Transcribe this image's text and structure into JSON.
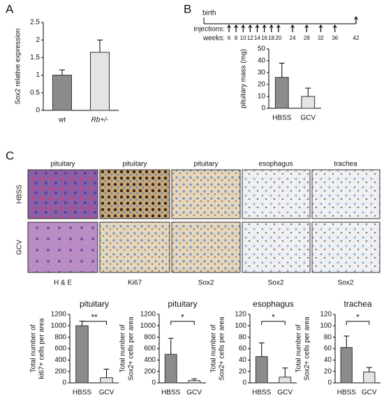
{
  "panel_labels": [
    "A",
    "B",
    "C"
  ],
  "timeline": {
    "birth": "birth",
    "injections_label": "injections:",
    "weeks_label": "weeks:",
    "weeks": [
      6,
      8,
      10,
      12,
      14,
      16,
      18,
      20,
      24,
      28,
      32,
      36,
      42
    ]
  },
  "micrographs": {
    "columns": [
      "pituitary",
      "pituitary",
      "pituitary",
      "esophagus",
      "trachea"
    ],
    "rows": [
      "HBSS",
      "GCV"
    ],
    "stains": [
      "H & E",
      "Ki67",
      "Sox2",
      "Sox2",
      "Sox2"
    ]
  },
  "chart_data": [
    {
      "type": "bar",
      "ylabel": [
        "Sox2 relative expression"
      ],
      "categories": [
        "wt",
        "Rb+/-"
      ],
      "values": [
        1.0,
        1.65
      ],
      "errors": [
        0.15,
        0.35
      ],
      "colors": [
        "#8c8c8c",
        "#e4e4e4"
      ],
      "ylim": [
        0,
        2.5
      ],
      "yticks": [
        0,
        0.5,
        1,
        1.5,
        2,
        2.5
      ]
    },
    {
      "type": "bar",
      "ylabel": [
        "pituitary mass (mg)"
      ],
      "categories": [
        "HBSS",
        "GCV"
      ],
      "values": [
        26,
        10
      ],
      "errors": [
        12,
        7
      ],
      "colors": [
        "#8c8c8c",
        "#e4e4e4"
      ],
      "ylim": [
        0,
        50
      ],
      "yticks": [
        0,
        10,
        20,
        30,
        40,
        50
      ]
    },
    {
      "type": "bar",
      "title": "pituitary",
      "ylabel": [
        "Total number of",
        "ki67+ cells per area"
      ],
      "categories": [
        "HBSS",
        "GCV"
      ],
      "values": [
        1000,
        90
      ],
      "errors": [
        80,
        150
      ],
      "colors": [
        "#8c8c8c",
        "#e4e4e4"
      ],
      "ylim": [
        0,
        1200
      ],
      "yticks": [
        0,
        200,
        400,
        600,
        800,
        1000,
        1200
      ],
      "annotation": "**"
    },
    {
      "type": "bar",
      "title": "pituitary",
      "ylabel": [
        "Total number of",
        "Sox2+ cells per area"
      ],
      "categories": [
        "HBSS",
        "GCV"
      ],
      "values": [
        500,
        40
      ],
      "errors": [
        280,
        30
      ],
      "colors": [
        "#8c8c8c",
        "#e4e4e4"
      ],
      "ylim": [
        0,
        1200
      ],
      "yticks": [
        0,
        200,
        400,
        600,
        800,
        1000,
        1200
      ],
      "annotation": "*"
    },
    {
      "type": "bar",
      "title": "esophagus",
      "ylabel": [
        "Total number of",
        "Sox2+ cells per area"
      ],
      "categories": [
        "HBSS",
        "GCV"
      ],
      "values": [
        46,
        10
      ],
      "errors": [
        24,
        16
      ],
      "colors": [
        "#8c8c8c",
        "#e4e4e4"
      ],
      "ylim": [
        0,
        120
      ],
      "yticks": [
        0,
        20,
        40,
        60,
        80,
        100,
        120
      ],
      "annotation": "*"
    },
    {
      "type": "bar",
      "title": "trachea",
      "ylabel": [
        "Total number of",
        "Sox2+ cells per area"
      ],
      "categories": [
        "HBSS",
        "GCV"
      ],
      "values": [
        62,
        19
      ],
      "errors": [
        20,
        8
      ],
      "colors": [
        "#8c8c8c",
        "#e4e4e4"
      ],
      "ylim": [
        0,
        120
      ],
      "yticks": [
        0,
        20,
        40,
        60,
        80,
        100,
        120
      ],
      "annotation": "*"
    }
  ]
}
